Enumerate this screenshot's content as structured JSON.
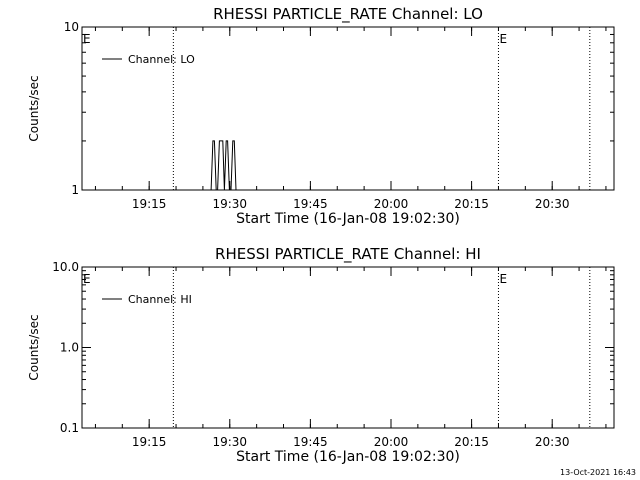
{
  "chart_data": [
    {
      "type": "line",
      "title": "RHESSI PARTICLE_RATE Channel: LO",
      "xlabel": "Start Time (16-Jan-08 19:02:30)",
      "ylabel": "Counts/sec",
      "y_scale": "log",
      "ylim": [
        1,
        10
      ],
      "y_ticks": [
        "1",
        "10"
      ],
      "xlim": [
        "19:02:30",
        "20:41:30"
      ],
      "x_ticks": [
        "19:15",
        "19:30",
        "19:45",
        "20:00",
        "20:15",
        "20:30"
      ],
      "legend_position": "top-left",
      "series": [
        {
          "name": "Channel: LO",
          "x": [
            "19:26:32",
            "19:26:52",
            "19:27:08",
            "19:27:28",
            "19:27:44",
            "19:28:04",
            "19:28:22",
            "19:28:42",
            "19:29:00",
            "19:29:20",
            "19:29:36",
            "19:29:56",
            "19:30:14",
            "19:30:34",
            "19:30:50",
            "19:31:10"
          ],
          "y": [
            1,
            2,
            2,
            1,
            1,
            2,
            2,
            2,
            1,
            2,
            2,
            1,
            1,
            2,
            2,
            1
          ]
        }
      ],
      "vertical_markers": [
        {
          "x": "19:19:30",
          "label": ""
        },
        {
          "x": "20:20:00",
          "label": "E"
        },
        {
          "x": "20:37:00",
          "label": ""
        }
      ],
      "edge_markers": [
        {
          "x": "19:02:30",
          "label": "E"
        }
      ]
    },
    {
      "type": "line",
      "title": "RHESSI PARTICLE_RATE Channel: HI",
      "xlabel": "Start Time (16-Jan-08 19:02:30)",
      "ylabel": "Counts/sec",
      "y_scale": "log",
      "ylim": [
        0.1,
        10
      ],
      "y_ticks": [
        "0.1",
        "1.0",
        "10.0"
      ],
      "xlim": [
        "19:02:30",
        "20:41:30"
      ],
      "x_ticks": [
        "19:15",
        "19:30",
        "19:45",
        "20:00",
        "20:15",
        "20:30"
      ],
      "legend_position": "top-left",
      "series": [
        {
          "name": "Channel: HI",
          "x": [],
          "y": []
        }
      ],
      "vertical_markers": [
        {
          "x": "19:19:30",
          "label": ""
        },
        {
          "x": "20:20:00",
          "label": "E"
        },
        {
          "x": "20:37:00",
          "label": ""
        }
      ],
      "edge_markers": [
        {
          "x": "19:02:30",
          "label": "E"
        }
      ]
    }
  ],
  "timestamp": "13-Oct-2021 16:43"
}
